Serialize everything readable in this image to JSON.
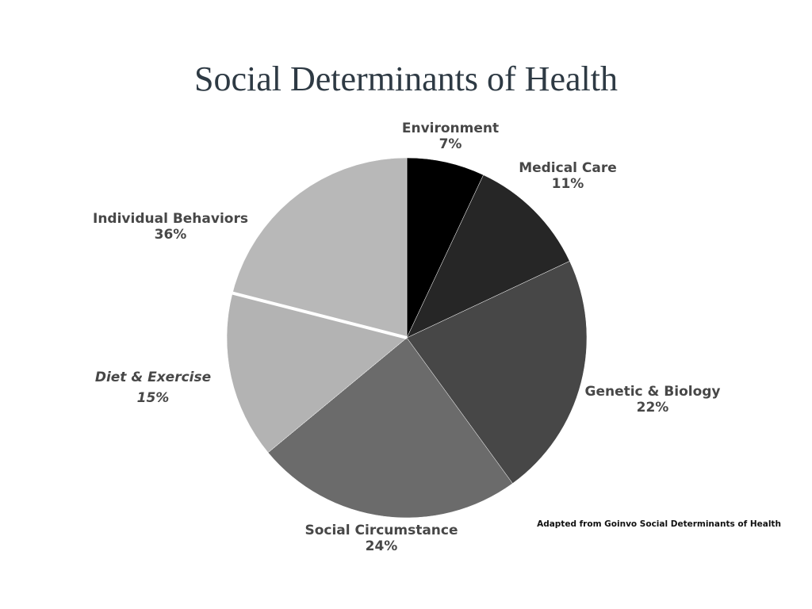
{
  "chart_data": {
    "type": "pie",
    "title": "Social Determinants of Health",
    "categories": [
      "Environment",
      "Medical Care",
      "Genetic & Biology",
      "Social Circumstance",
      "Individual Behaviors"
    ],
    "values": [
      7,
      11,
      22,
      24,
      36
    ],
    "value_labels": [
      "7%",
      "11%",
      "22%",
      "24%",
      "36%"
    ],
    "colors": [
      "#000000",
      "#262626",
      "#474747",
      "#6b6b6b",
      "#b8b8b8"
    ],
    "subslice": {
      "category": "Diet & Exercise",
      "value": 15,
      "value_label": "15%",
      "color": "#b3b3b3"
    },
    "annotation": "Adapted from Goinvo Social Determinants of Health"
  }
}
